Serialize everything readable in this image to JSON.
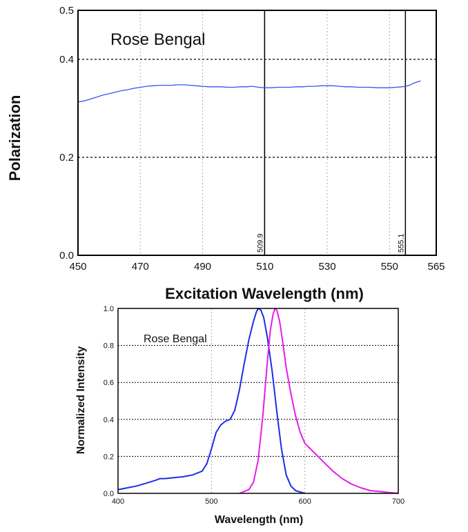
{
  "chart_data": [
    {
      "type": "line",
      "title": "Rose Bengal",
      "xlabel": "Excitation Wavelength (nm)",
      "ylabel": "Polarization",
      "xlim": [
        450,
        565
      ],
      "ylim": [
        0.0,
        0.5
      ],
      "xticks": [
        "450",
        "470",
        "490",
        "510",
        "530",
        "550",
        "565"
      ],
      "yticks": [
        "0.0",
        "0.2",
        "0.4",
        "0.5"
      ],
      "grid": true,
      "markers": [
        {
          "x": 509.9,
          "label": "509.9"
        },
        {
          "x": 555.1,
          "label": "555.1"
        }
      ],
      "series": [
        {
          "color": "#3355ee",
          "x": [
            450,
            452,
            454,
            456,
            458,
            460,
            462,
            464,
            466,
            468,
            470,
            472,
            474,
            476,
            478,
            480,
            482,
            484,
            486,
            488,
            490,
            492,
            494,
            496,
            498,
            500,
            502,
            504,
            506,
            508,
            510,
            512,
            514,
            516,
            518,
            520,
            522,
            524,
            526,
            528,
            530,
            532,
            534,
            536,
            538,
            540,
            542,
            544,
            546,
            548,
            550,
            552,
            554,
            556,
            558,
            560
          ],
          "y": [
            0.313,
            0.315,
            0.319,
            0.323,
            0.327,
            0.33,
            0.333,
            0.336,
            0.338,
            0.341,
            0.343,
            0.345,
            0.346,
            0.347,
            0.347,
            0.347,
            0.348,
            0.348,
            0.347,
            0.346,
            0.345,
            0.344,
            0.344,
            0.344,
            0.343,
            0.343,
            0.344,
            0.344,
            0.345,
            0.343,
            0.342,
            0.342,
            0.343,
            0.343,
            0.343,
            0.344,
            0.344,
            0.345,
            0.345,
            0.346,
            0.346,
            0.346,
            0.345,
            0.344,
            0.344,
            0.343,
            0.343,
            0.343,
            0.342,
            0.342,
            0.342,
            0.343,
            0.344,
            0.346,
            0.352,
            0.356
          ]
        }
      ]
    },
    {
      "type": "line",
      "title": "Rose Bengal",
      "xlabel": "Wavelength (nm)",
      "ylabel": "Normalized Intensity",
      "xlim": [
        400,
        700
      ],
      "ylim": [
        0.0,
        1.0
      ],
      "xticks": [
        "400",
        "500",
        "600",
        "700"
      ],
      "yticks": [
        "0.0",
        "0.2",
        "0.4",
        "0.6",
        "0.8",
        "1.0"
      ],
      "grid": true,
      "series": [
        {
          "color": "#1a2ee8",
          "x": [
            400,
            410,
            420,
            430,
            440,
            445,
            450,
            460,
            470,
            480,
            490,
            495,
            500,
            505,
            510,
            515,
            520,
            525,
            530,
            535,
            540,
            545,
            548,
            550,
            553,
            556,
            560,
            565,
            570,
            575,
            580,
            585,
            590,
            600
          ],
          "y": [
            0.02,
            0.03,
            0.04,
            0.055,
            0.07,
            0.08,
            0.08,
            0.085,
            0.09,
            0.1,
            0.12,
            0.16,
            0.24,
            0.33,
            0.37,
            0.39,
            0.4,
            0.45,
            0.56,
            0.7,
            0.83,
            0.93,
            0.98,
            1.0,
            0.99,
            0.95,
            0.84,
            0.66,
            0.44,
            0.24,
            0.1,
            0.04,
            0.015,
            0.0
          ]
        },
        {
          "color": "#e81ae8",
          "x": [
            530,
            540,
            545,
            550,
            555,
            560,
            563,
            566,
            568,
            570,
            573,
            576,
            580,
            585,
            590,
            595,
            600,
            610,
            620,
            630,
            640,
            650,
            660,
            670,
            680,
            690,
            700
          ],
          "y": [
            0.0,
            0.02,
            0.06,
            0.18,
            0.42,
            0.72,
            0.88,
            0.97,
            1.0,
            0.99,
            0.93,
            0.83,
            0.68,
            0.54,
            0.42,
            0.33,
            0.27,
            0.22,
            0.17,
            0.12,
            0.08,
            0.05,
            0.03,
            0.015,
            0.01,
            0.005,
            0.0
          ]
        }
      ]
    }
  ]
}
